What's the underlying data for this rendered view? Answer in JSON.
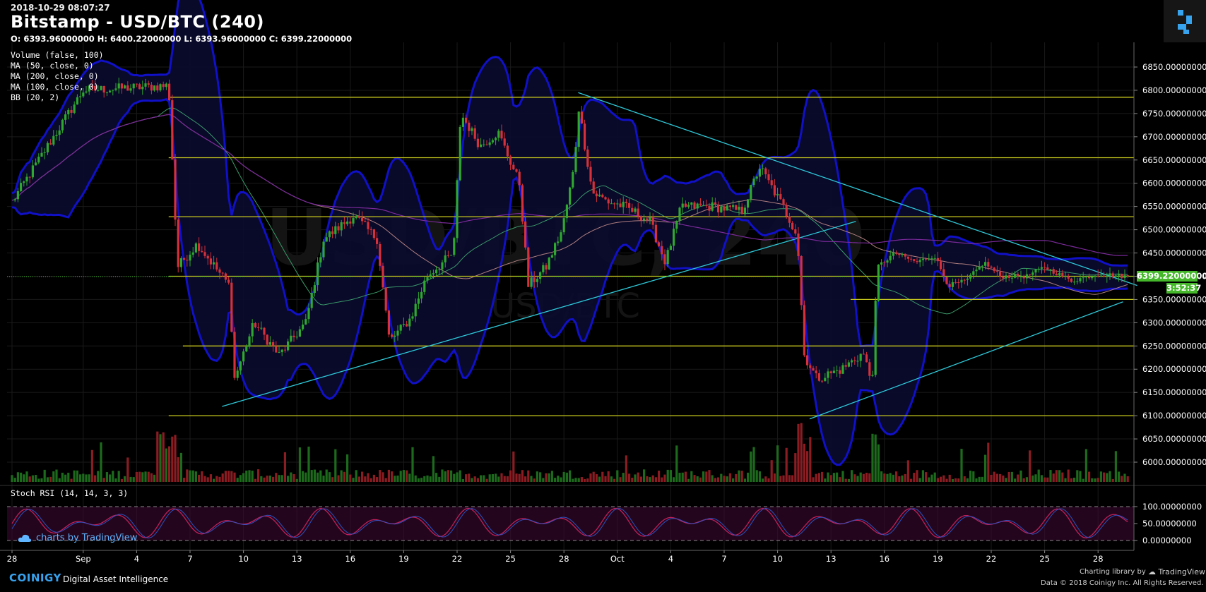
{
  "header": {
    "timestamp": "2018-10-29 08:07:27",
    "title": "Bitstamp - USD/BTC (240)",
    "ohlc": "O: 6393.96000000 H: 6400.22000000 L: 6393.96000000 C: 6399.22000000"
  },
  "legend": [
    "Volume (false, 100)",
    "MA (50, close, 0)",
    "MA (200, close, 0)",
    "MA (100, close, 0)",
    "BB (20, 2)"
  ],
  "watermark": {
    "main": "USD/BTC, 240",
    "sub": "USD/BTC"
  },
  "rsi_label": "Stoch RSI (14, 14, 3, 3)",
  "last_price_label": "6399.22000000",
  "countdown_label": "3:52:37",
  "branding": {
    "tradingview": "charts by TradingView",
    "coinigy": "COINIGY",
    "coinigy_sub": "Digital Asset Intelligence",
    "charting_library": "Charting library by",
    "tradingview_right": "TradingView",
    "data_credit": "Data © 2018  Coinigy Inc. All Rights Reserved."
  },
  "colors": {
    "up": "#2ea82e",
    "down": "#d6303a",
    "support": "#c8c81e",
    "trend": "#2ec8d8",
    "bb": "#1010c8",
    "rsi": "#c0205a",
    "rsi_fill": "#3a0a30",
    "accent": "#37a2ee"
  },
  "chart_data": {
    "type": "candlestick",
    "price_ylim": [
      5960,
      6880
    ],
    "price_ticks": [
      "6850.00000000",
      "6800.00000000",
      "6750.00000000",
      "6700.00000000",
      "6650.00000000",
      "6600.00000000",
      "6550.00000000",
      "6500.00000000",
      "6450.00000000",
      "6400.00000000",
      "6350.00000000",
      "6300.00000000",
      "6250.00000000",
      "6200.00000000",
      "6150.00000000",
      "6100.00000000",
      "6050.00000000",
      "6000.00000000"
    ],
    "rsi_ticks": [
      "100.00000000",
      "50.00000000",
      "0.00000000"
    ],
    "x_ticks": [
      {
        "label": "28",
        "day": 0
      },
      {
        "label": "Sep",
        "day": 4
      },
      {
        "label": "4",
        "day": 7
      },
      {
        "label": "7",
        "day": 10
      },
      {
        "label": "10",
        "day": 13
      },
      {
        "label": "13",
        "day": 16
      },
      {
        "label": "16",
        "day": 19
      },
      {
        "label": "19",
        "day": 22
      },
      {
        "label": "22",
        "day": 25
      },
      {
        "label": "25",
        "day": 28
      },
      {
        "label": "28",
        "day": 31
      },
      {
        "label": "Oct",
        "day": 34
      },
      {
        "label": "4",
        "day": 37
      },
      {
        "label": "7",
        "day": 40
      },
      {
        "label": "10",
        "day": 43
      },
      {
        "label": "13",
        "day": 46
      },
      {
        "label": "16",
        "day": 49
      },
      {
        "label": "19",
        "day": 52
      },
      {
        "label": "22",
        "day": 55
      },
      {
        "label": "25",
        "day": 58
      },
      {
        "label": "28",
        "day": 61
      }
    ],
    "support_levels": [
      {
        "price": 6785,
        "from_day": 8.8
      },
      {
        "price": 6655,
        "from_day": 8.8
      },
      {
        "price": 6528,
        "from_day": 8.8
      },
      {
        "price": 6400,
        "from_day": 8.8
      },
      {
        "price": 6350,
        "from_day": 47.1
      },
      {
        "price": 6250,
        "from_day": 9.6
      },
      {
        "price": 6100,
        "from_day": 8.8
      }
    ],
    "trend_lines": [
      {
        "from": [
          11.8,
          6120
        ],
        "to": [
          47.4,
          6518
        ]
      },
      {
        "from": [
          31.8,
          6795
        ],
        "to": [
          63.2,
          6380
        ]
      },
      {
        "from": [
          44.8,
          6093
        ],
        "to": [
          62.4,
          6345
        ]
      }
    ],
    "price_path": [
      [
        0,
        6560
      ],
      [
        4,
        6800
      ],
      [
        8.8,
        6810
      ],
      [
        9.3,
        6420
      ],
      [
        10.4,
        6470
      ],
      [
        12.2,
        6380
      ],
      [
        12.5,
        6180
      ],
      [
        13.6,
        6300
      ],
      [
        15,
        6230
      ],
      [
        16.5,
        6300
      ],
      [
        17.5,
        6480
      ],
      [
        19.2,
        6530
      ],
      [
        20.5,
        6480
      ],
      [
        21.2,
        6260
      ],
      [
        22.4,
        6310
      ],
      [
        23.3,
        6400
      ],
      [
        24.8,
        6450
      ],
      [
        25.2,
        6750
      ],
      [
        26.3,
        6680
      ],
      [
        27.3,
        6710
      ],
      [
        28.5,
        6600
      ],
      [
        29,
        6380
      ],
      [
        30,
        6420
      ],
      [
        30.9,
        6500
      ],
      [
        31.6,
        6640
      ],
      [
        31.8,
        6770
      ],
      [
        32.6,
        6580
      ],
      [
        33.5,
        6560
      ],
      [
        34.4,
        6550
      ],
      [
        35.8,
        6520
      ],
      [
        36.7,
        6430
      ],
      [
        37.6,
        6550
      ],
      [
        39.3,
        6550
      ],
      [
        41,
        6540
      ],
      [
        42,
        6635
      ],
      [
        43.3,
        6550
      ],
      [
        44.1,
        6490
      ],
      [
        44.5,
        6230
      ],
      [
        45.2,
        6180
      ],
      [
        46.6,
        6200
      ],
      [
        47.8,
        6235
      ],
      [
        48.3,
        6170
      ],
      [
        48.6,
        6420
      ],
      [
        49.6,
        6450
      ],
      [
        50.8,
        6430
      ],
      [
        51.8,
        6445
      ],
      [
        52.6,
        6380
      ],
      [
        53.6,
        6390
      ],
      [
        54.6,
        6430
      ],
      [
        55.5,
        6400
      ],
      [
        57,
        6400
      ],
      [
        58,
        6420
      ],
      [
        59.5,
        6390
      ],
      [
        61,
        6405
      ],
      [
        62.8,
        6399
      ]
    ]
  }
}
